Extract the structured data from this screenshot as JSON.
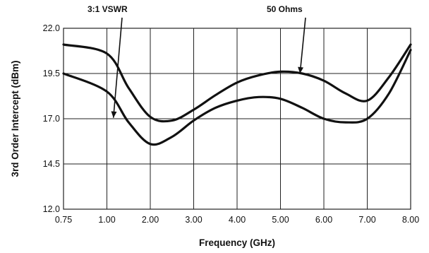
{
  "chart_data": {
    "type": "line",
    "xlabel": "Frequency (GHz)",
    "ylabel": "3rd Order Intercept (dBm)",
    "xlim": [
      0.75,
      8.0
    ],
    "ylim": [
      12.0,
      22.0
    ],
    "x_ticks": [
      0.75,
      1.0,
      2.0,
      3.0,
      4.0,
      5.0,
      6.0,
      7.0,
      8.0
    ],
    "x_tick_labels": [
      "0.75",
      "1.00",
      "2.00",
      "3.00",
      "4.00",
      "5.00",
      "6.00",
      "7.00",
      "8.00"
    ],
    "y_ticks": [
      12.0,
      14.5,
      17.0,
      19.5,
      22.0
    ],
    "y_tick_labels": [
      "12.0",
      "14.5",
      "17.0",
      "19.5",
      "22.0"
    ],
    "grid": true,
    "series": [
      {
        "name": "50 Ohms",
        "x": [
          0.75,
          1.0,
          1.5,
          2.0,
          2.5,
          3.0,
          3.5,
          4.0,
          4.5,
          5.0,
          5.5,
          6.0,
          6.5,
          7.0,
          7.5,
          8.0
        ],
        "values": [
          21.1,
          20.6,
          18.7,
          17.1,
          16.9,
          17.5,
          18.3,
          19.0,
          19.4,
          19.6,
          19.5,
          19.1,
          18.4,
          18.0,
          19.3,
          21.1
        ]
      },
      {
        "name": "3:1 VSWR",
        "x": [
          0.75,
          1.0,
          1.5,
          2.0,
          2.5,
          3.0,
          3.5,
          4.0,
          4.5,
          5.0,
          5.5,
          6.0,
          6.5,
          7.0,
          7.5,
          8.0
        ],
        "values": [
          19.5,
          18.5,
          16.8,
          15.6,
          16.0,
          16.9,
          17.6,
          18.0,
          18.2,
          18.1,
          17.6,
          17.0,
          16.8,
          17.0,
          18.4,
          20.8
        ]
      }
    ],
    "annotations": [
      {
        "text": "3:1 VSWR",
        "points_to_series": "3:1 VSWR",
        "target": [
          1.15,
          17.05
        ]
      },
      {
        "text": "50 Ohms",
        "points_to_series": "50 Ohms",
        "target": [
          5.45,
          19.5
        ]
      }
    ]
  }
}
